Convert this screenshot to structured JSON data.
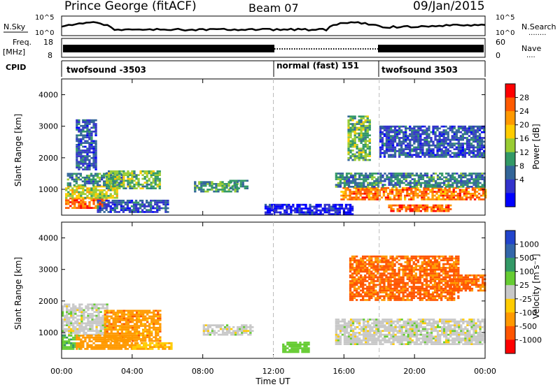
{
  "header": {
    "title": "Prince George (fitACF)",
    "beam": "Beam 07",
    "date": "09/Jan/2015"
  },
  "sky_panel": {
    "left_label": "N.Sky",
    "left_ticks": [
      "10^5",
      "10^0"
    ],
    "right_ticks": [
      "10^5",
      "10^0"
    ],
    "right_label": "N.Search",
    "right_label_line": "........"
  },
  "freq_panel": {
    "left_label_1": "Freq.",
    "left_label_2": "[MHz]",
    "left_ticks": [
      "18",
      "8"
    ],
    "right_ticks": [
      "60",
      "0"
    ],
    "right_label": "Nave",
    "right_label_line": "...."
  },
  "cpid_panel": {
    "label": "CPID",
    "segments": [
      {
        "label": "twofsound -3503",
        "start": 0,
        "end": 12
      },
      {
        "label": "normal (fast) 151",
        "start": 12,
        "end": 18
      },
      {
        "label": "twofsound 3503",
        "start": 18,
        "end": 24
      }
    ]
  },
  "axes": {
    "x_ticks": [
      "00:00",
      "04:00",
      "08:00",
      "12:00",
      "16:00",
      "20:00",
      "00:00"
    ],
    "x_label": "Time UT",
    "y_label": "Slant Range [km]",
    "y_ticks": [
      "1000",
      "2000",
      "3000",
      "4000"
    ]
  },
  "power_colorbar": {
    "label": "Power [dB]",
    "ticks": [
      "28",
      "24",
      "20",
      "16",
      "12",
      "8",
      "4"
    ],
    "colors": [
      "#ff0000",
      "#ff5a00",
      "#ff9900",
      "#ffcc00",
      "#99cc33",
      "#339966",
      "#336699",
      "#3333cc",
      "#0000ff"
    ]
  },
  "velocity_colorbar": {
    "label": "Velocity [m s⁻¹]",
    "ticks": [
      "1000",
      "500",
      "100",
      "25",
      "-25",
      "-100",
      "-500",
      "-1000"
    ],
    "colors": [
      "#2244cc",
      "#3366aa",
      "#339966",
      "#66cc33",
      "#c8c8c8",
      "#ffcc00",
      "#ff9900",
      "#ff5500",
      "#ff0000"
    ]
  },
  "chart_data": {
    "type": "heatmap",
    "x_range_hours": [
      0,
      24
    ],
    "y_range_km": [
      180,
      4500
    ],
    "mode_changes_ut": [
      12,
      18
    ],
    "power_regions": [
      {
        "t0": 0.2,
        "t1": 2.6,
        "r0": 380,
        "r1": 700,
        "dB": 30
      },
      {
        "t0": 0.2,
        "t1": 3.2,
        "r0": 700,
        "r1": 1100,
        "dB": 20
      },
      {
        "t0": 0.3,
        "t1": 3.5,
        "r0": 1100,
        "r1": 1500,
        "dB": 12
      },
      {
        "t0": 2.5,
        "t1": 5.6,
        "r0": 1000,
        "r1": 1600,
        "dB": 16
      },
      {
        "t0": 2.0,
        "t1": 6.0,
        "r0": 250,
        "r1": 650,
        "dB": 8
      },
      {
        "t0": 7.5,
        "t1": 10.0,
        "r0": 900,
        "r1": 1250,
        "dB": 14
      },
      {
        "t0": 9.5,
        "t1": 10.5,
        "r0": 1000,
        "r1": 1300,
        "dB": 12
      },
      {
        "t0": 0.8,
        "t1": 2.0,
        "r0": 1600,
        "r1": 3200,
        "dB": 8
      },
      {
        "t0": 15.8,
        "t1": 24.0,
        "r0": 650,
        "r1": 1050,
        "dB": 28
      },
      {
        "t0": 15.5,
        "t1": 24.0,
        "r0": 1050,
        "r1": 1500,
        "dB": 12
      },
      {
        "t0": 18.5,
        "t1": 22.0,
        "r0": 280,
        "r1": 520,
        "dB": 30
      },
      {
        "t0": 16.2,
        "t1": 17.5,
        "r0": 1900,
        "r1": 3300,
        "dB": 16
      },
      {
        "t0": 18.0,
        "t1": 24.0,
        "r0": 2000,
        "r1": 3000,
        "dB": 8
      },
      {
        "t0": 11.5,
        "t1": 16.5,
        "r0": 180,
        "r1": 500,
        "dB": 4
      }
    ],
    "velocity_regions": [
      {
        "t0": 0.0,
        "t1": 2.6,
        "r0": 900,
        "r1": 1900,
        "v": 0
      },
      {
        "t0": 2.4,
        "t1": 5.6,
        "r0": 700,
        "r1": 1700,
        "v": -300
      },
      {
        "t0": 0.0,
        "t1": 1.0,
        "r0": 450,
        "r1": 900,
        "v": 80
      },
      {
        "t0": 0.8,
        "t1": 4.0,
        "r0": 450,
        "r1": 900,
        "v": -150
      },
      {
        "t0": 4.0,
        "t1": 6.2,
        "r0": 450,
        "r1": 650,
        "v": -100
      },
      {
        "t0": 8.0,
        "t1": 10.8,
        "r0": 900,
        "r1": 1250,
        "v": 0
      },
      {
        "t0": 15.5,
        "t1": 24.0,
        "r0": 600,
        "r1": 1400,
        "v": 0
      },
      {
        "t0": 16.3,
        "t1": 22.5,
        "r0": 2000,
        "r1": 3400,
        "v": -600
      },
      {
        "t0": 22.0,
        "t1": 24.0,
        "r0": 2300,
        "r1": 2800,
        "v": -600
      },
      {
        "t0": 12.5,
        "t1": 14.0,
        "r0": 350,
        "r1": 700,
        "v": 60
      }
    ]
  }
}
